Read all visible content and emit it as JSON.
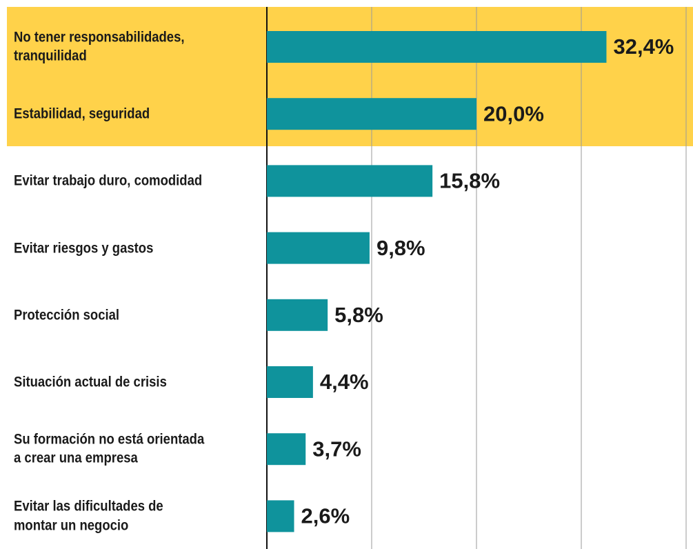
{
  "chart_data": {
    "type": "bar",
    "orientation": "horizontal",
    "categories": [
      "No tener responsabilidades,\ntranquilidad",
      "Estabilidad, seguridad",
      "Evitar trabajo duro, comodidad",
      "Evitar riesgos y gastos",
      "Protección social",
      "Situación actual de crisis",
      "Su formación no está orientada\na crear una empresa",
      "Evitar las dificultades de\nmontar un negocio"
    ],
    "values": [
      32.4,
      20.0,
      15.8,
      9.8,
      5.8,
      4.4,
      3.7,
      2.6
    ],
    "value_labels": [
      "32,4%",
      "20,0%",
      "15,8%",
      "9,8%",
      "5,8%",
      "4,4%",
      "3,7%",
      "2,6%"
    ],
    "color": "#0f939c",
    "xlim": [
      0,
      40
    ],
    "xticks": [
      0,
      10,
      20,
      30,
      40
    ],
    "grid": true
  }
}
